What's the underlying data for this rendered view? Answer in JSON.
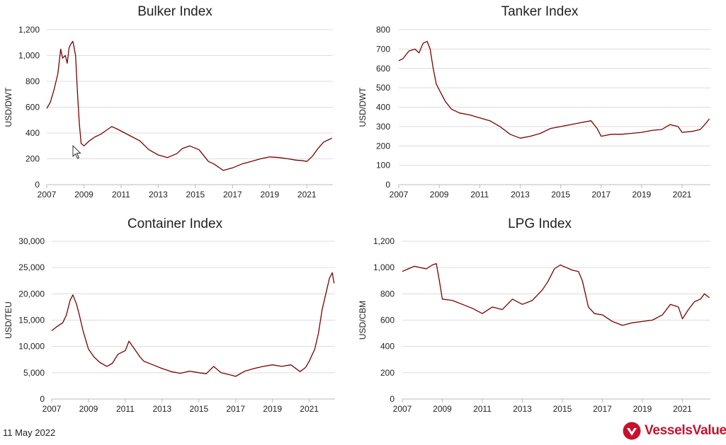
{
  "date_label": "11 May 2022",
  "brand": {
    "name": "VesselsValue",
    "color": "#c8102e"
  },
  "line_color": "#7a0000",
  "grid_color": "#dcdcdc",
  "chart_data": [
    {
      "type": "line",
      "title": "Bulker Index",
      "ylabel": "USD/DWT",
      "ylim": [
        0,
        1200
      ],
      "yticks": [
        0,
        200,
        400,
        600,
        800,
        1000,
        1200
      ],
      "ytick_labels": [
        "0",
        "200",
        "400",
        "600",
        "800",
        "1,000",
        "1,200"
      ],
      "xlim": [
        2007,
        2022.4
      ],
      "xticks": [
        2007,
        2009,
        2011,
        2013,
        2015,
        2017,
        2019,
        2021
      ],
      "grid": "horizontal",
      "series": [
        {
          "x": [
            2007.0,
            2007.2,
            2007.4,
            2007.6,
            2007.75,
            2007.85,
            2008.0,
            2008.1,
            2008.2,
            2008.3,
            2008.4,
            2008.45,
            2008.55,
            2008.65,
            2008.75,
            2008.85,
            2009.0,
            2009.3,
            2009.6,
            2009.9,
            2010.2,
            2010.5,
            2010.8,
            2011.2,
            2011.6,
            2012.0,
            2012.5,
            2013.0,
            2013.5,
            2014.0,
            2014.3,
            2014.7,
            2015.2,
            2015.7,
            2016.0,
            2016.5,
            2017.0,
            2017.5,
            2018.0,
            2018.5,
            2019.0,
            2019.5,
            2020.0,
            2020.4,
            2020.8,
            2021.0,
            2021.3,
            2021.6,
            2021.9,
            2022.2,
            2022.35
          ],
          "y": [
            590,
            640,
            740,
            860,
            1050,
            980,
            1000,
            940,
            1060,
            1090,
            1110,
            1080,
            1000,
            720,
            480,
            320,
            300,
            340,
            370,
            390,
            420,
            450,
            430,
            400,
            370,
            340,
            270,
            230,
            210,
            240,
            280,
            300,
            270,
            180,
            160,
            110,
            130,
            160,
            180,
            200,
            215,
            210,
            200,
            190,
            185,
            180,
            220,
            280,
            330,
            350,
            360
          ]
        }
      ]
    },
    {
      "type": "line",
      "title": "Tanker Index",
      "ylabel": "USD/DWT",
      "ylim": [
        0,
        800
      ],
      "yticks": [
        0,
        100,
        200,
        300,
        400,
        500,
        600,
        700,
        800
      ],
      "ytick_labels": [
        "0",
        "100",
        "200",
        "300",
        "400",
        "500",
        "600",
        "700",
        "800"
      ],
      "xlim": [
        2007,
        2022.4
      ],
      "xticks": [
        2007,
        2009,
        2011,
        2013,
        2015,
        2017,
        2019,
        2021
      ],
      "grid": "horizontal",
      "series": [
        {
          "x": [
            2007.0,
            2007.2,
            2007.5,
            2007.8,
            2008.0,
            2008.2,
            2008.4,
            2008.55,
            2008.7,
            2008.85,
            2009.0,
            2009.3,
            2009.6,
            2010.0,
            2010.5,
            2011.0,
            2011.5,
            2012.0,
            2012.5,
            2013.0,
            2013.5,
            2014.0,
            2014.5,
            2015.0,
            2015.5,
            2016.0,
            2016.5,
            2016.8,
            2017.0,
            2017.5,
            2018.0,
            2018.5,
            2019.0,
            2019.5,
            2020.0,
            2020.4,
            2020.8,
            2021.0,
            2021.5,
            2021.9,
            2022.2,
            2022.35
          ],
          "y": [
            640,
            650,
            690,
            700,
            680,
            730,
            740,
            700,
            600,
            520,
            490,
            430,
            390,
            370,
            360,
            345,
            330,
            300,
            260,
            240,
            250,
            265,
            290,
            300,
            310,
            320,
            330,
            290,
            250,
            260,
            260,
            265,
            270,
            280,
            285,
            310,
            300,
            270,
            275,
            285,
            320,
            340
          ]
        }
      ]
    },
    {
      "type": "line",
      "title": "Container Index",
      "ylabel": "USD/TEU",
      "ylim": [
        0,
        30000
      ],
      "yticks": [
        0,
        5000,
        10000,
        15000,
        20000,
        25000,
        30000
      ],
      "ytick_labels": [
        "0",
        "5,000",
        "10,000",
        "15,000",
        "20,000",
        "25,000",
        "30,000"
      ],
      "xlim": [
        2007,
        2022.4
      ],
      "xticks": [
        2007,
        2009,
        2011,
        2013,
        2015,
        2017,
        2019,
        2021
      ],
      "grid": "horizontal",
      "series": [
        {
          "x": [
            2007.0,
            2007.3,
            2007.6,
            2007.8,
            2008.0,
            2008.15,
            2008.35,
            2008.5,
            2008.7,
            2009.0,
            2009.3,
            2009.6,
            2010.0,
            2010.3,
            2010.6,
            2011.0,
            2011.2,
            2011.5,
            2011.8,
            2012.0,
            2012.5,
            2013.0,
            2013.5,
            2014.0,
            2014.5,
            2015.0,
            2015.4,
            2015.8,
            2016.2,
            2016.8,
            2017.0,
            2017.5,
            2018.0,
            2018.5,
            2019.0,
            2019.5,
            2020.0,
            2020.5,
            2020.8,
            2021.0,
            2021.3,
            2021.5,
            2021.7,
            2021.9,
            2022.1,
            2022.25,
            2022.35
          ],
          "y": [
            13000,
            13800,
            14500,
            16000,
            18800,
            19800,
            18000,
            16000,
            13000,
            9500,
            8000,
            7000,
            6200,
            6800,
            8500,
            9200,
            11000,
            9500,
            8000,
            7200,
            6500,
            5800,
            5200,
            4900,
            5300,
            5000,
            4800,
            6200,
            5000,
            4500,
            4300,
            5300,
            5800,
            6200,
            6500,
            6200,
            6500,
            5200,
            6000,
            7200,
            9500,
            12500,
            17000,
            20000,
            23000,
            24000,
            22000
          ]
        }
      ]
    },
    {
      "type": "line",
      "title": "LPG Index",
      "ylabel": "USD/CBM",
      "ylim": [
        0,
        1200
      ],
      "yticks": [
        0,
        200,
        400,
        600,
        800,
        1000,
        1200
      ],
      "ytick_labels": [
        "0",
        "200",
        "400",
        "600",
        "800",
        "1,000",
        "1,200"
      ],
      "xlim": [
        2007,
        2022.4
      ],
      "xticks": [
        2007,
        2009,
        2011,
        2013,
        2015,
        2017,
        2019,
        2021
      ],
      "grid": "horizontal",
      "series": [
        {
          "x": [
            2007.0,
            2007.3,
            2007.6,
            2007.9,
            2008.2,
            2008.5,
            2008.7,
            2008.85,
            2009.0,
            2009.5,
            2010.0,
            2010.5,
            2011.0,
            2011.5,
            2012.0,
            2012.5,
            2013.0,
            2013.5,
            2014.0,
            2014.3,
            2014.6,
            2014.9,
            2015.2,
            2015.5,
            2015.8,
            2016.0,
            2016.3,
            2016.6,
            2017.0,
            2017.5,
            2018.0,
            2018.5,
            2019.0,
            2019.5,
            2020.0,
            2020.4,
            2020.8,
            2021.0,
            2021.3,
            2021.6,
            2021.9,
            2022.1,
            2022.35
          ],
          "y": [
            970,
            990,
            1010,
            1000,
            990,
            1020,
            1030,
            900,
            760,
            750,
            720,
            690,
            650,
            700,
            680,
            760,
            720,
            750,
            830,
            900,
            990,
            1020,
            1000,
            980,
            970,
            900,
            700,
            650,
            640,
            590,
            560,
            580,
            590,
            600,
            640,
            720,
            700,
            610,
            680,
            740,
            760,
            800,
            770
          ]
        }
      ]
    }
  ]
}
